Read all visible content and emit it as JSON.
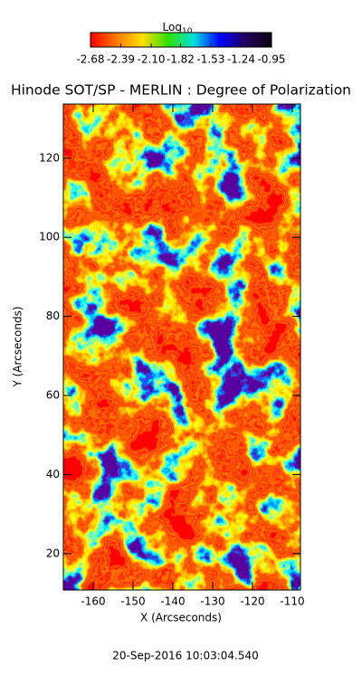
{
  "chart_data": {
    "type": "heatmap",
    "title": "Hinode SOT/SP - MERLIN : Degree of Polarization",
    "colorbar": {
      "label": "Log",
      "label_subscript": "10",
      "lim": [
        -2.68,
        -0.95
      ],
      "ticks": [
        -2.68,
        -2.39,
        {
          "value": -2.1,
          "label": "-2.10"
        },
        -1.82,
        -1.53,
        -1.24,
        -0.95
      ],
      "colors": [
        "#ff0000",
        "#ff7a00",
        "#ffe000",
        "#30e000",
        "#00e0e0",
        "#0000ff",
        "#200060",
        "#100010"
      ]
    },
    "x_label": "X (Arcseconds)",
    "y_label": "Y (Arcseconds)",
    "xlim": [
      -167.5,
      -107.95
    ],
    "ylim": [
      10.8,
      133.7
    ],
    "xticks": [
      -160,
      -150,
      -140,
      -130,
      -120,
      -110
    ],
    "yticks": [
      20,
      40,
      60,
      80,
      100,
      120
    ],
    "footer": "20-Sep-2016 10:03:04.540"
  }
}
